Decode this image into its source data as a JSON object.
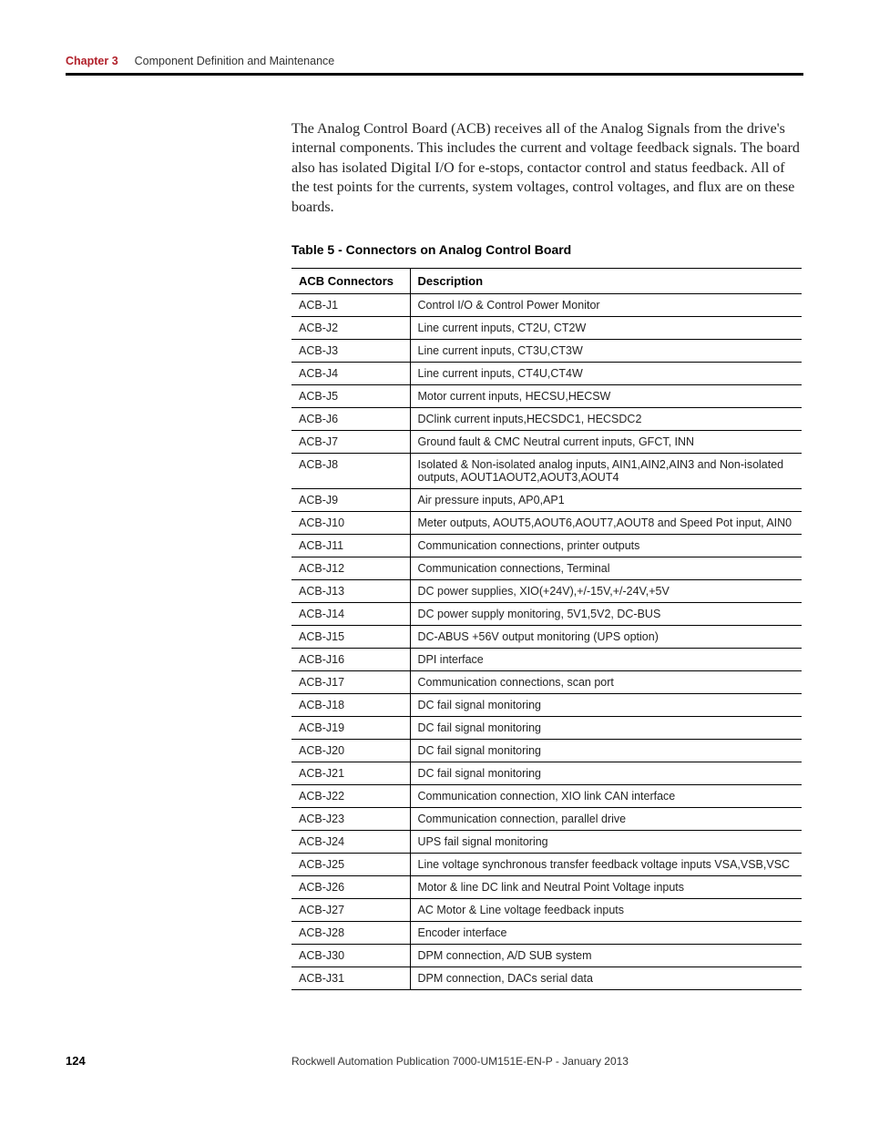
{
  "header": {
    "chapter_label": "Chapter 3",
    "chapter_title": "Component Definition and Maintenance"
  },
  "body_paragraph": "The Analog Control Board (ACB) receives all of the Analog Signals from the drive's internal components. This includes the current and voltage feedback signals. The board also has isolated Digital I/O for e-stops, contactor control and status feedback. All of the test points for the currents, system voltages, control voltages, and flux are on these boards.",
  "table": {
    "caption": "Table 5 - Connectors on Analog Control Board",
    "columns": [
      "ACB Connectors",
      "Description"
    ],
    "rows": [
      [
        "ACB-J1",
        "Control I/O & Control Power Monitor"
      ],
      [
        "ACB-J2",
        "Line current inputs, CT2U, CT2W"
      ],
      [
        "ACB-J3",
        "Line current inputs, CT3U,CT3W"
      ],
      [
        "ACB-J4",
        "Line current inputs, CT4U,CT4W"
      ],
      [
        "ACB-J5",
        "Motor current inputs, HECSU,HECSW"
      ],
      [
        "ACB-J6",
        "DClink current inputs,HECSDC1, HECSDC2"
      ],
      [
        "ACB-J7",
        "Ground fault & CMC Neutral current inputs, GFCT, INN"
      ],
      [
        "ACB-J8",
        "Isolated & Non-isolated analog inputs, AIN1,AIN2,AIN3 and Non-isolated outputs, AOUT1AOUT2,AOUT3,AOUT4"
      ],
      [
        "ACB-J9",
        "Air pressure inputs, AP0,AP1"
      ],
      [
        "ACB-J10",
        "Meter outputs, AOUT5,AOUT6,AOUT7,AOUT8 and Speed Pot input, AIN0"
      ],
      [
        "ACB-J11",
        "Communication connections, printer outputs"
      ],
      [
        "ACB-J12",
        "Communication connections, Terminal"
      ],
      [
        "ACB-J13",
        "DC power supplies, XIO(+24V),+/-15V,+/-24V,+5V"
      ],
      [
        "ACB-J14",
        "DC power supply monitoring, 5V1,5V2, DC-BUS"
      ],
      [
        "ACB-J15",
        "DC-ABUS +56V output monitoring (UPS option)"
      ],
      [
        "ACB-J16",
        "DPI interface"
      ],
      [
        "ACB-J17",
        "Communication connections, scan port"
      ],
      [
        "ACB-J18",
        "DC fail signal monitoring"
      ],
      [
        "ACB-J19",
        "DC fail signal monitoring"
      ],
      [
        "ACB-J20",
        "DC fail signal monitoring"
      ],
      [
        "ACB-J21",
        "DC fail signal monitoring"
      ],
      [
        "ACB-J22",
        "Communication connection, XIO link CAN interface"
      ],
      [
        "ACB-J23",
        "Communication connection, parallel drive"
      ],
      [
        "ACB-J24",
        "UPS fail signal monitoring"
      ],
      [
        "ACB-J25",
        "Line voltage synchronous transfer feedback voltage inputs VSA,VSB,VSC"
      ],
      [
        "ACB-J26",
        "Motor & line DC link and Neutral Point Voltage inputs"
      ],
      [
        "ACB-J27",
        "AC Motor & Line voltage feedback inputs"
      ],
      [
        "ACB-J28",
        "Encoder interface"
      ],
      [
        "ACB-J30",
        "DPM connection, A/D SUB system"
      ],
      [
        "ACB-J31",
        "DPM connection, DACs serial data"
      ]
    ]
  },
  "footer": {
    "page_number": "124",
    "publication": "Rockwell Automation Publication 7000-UM151E-EN-P - January 2013"
  }
}
